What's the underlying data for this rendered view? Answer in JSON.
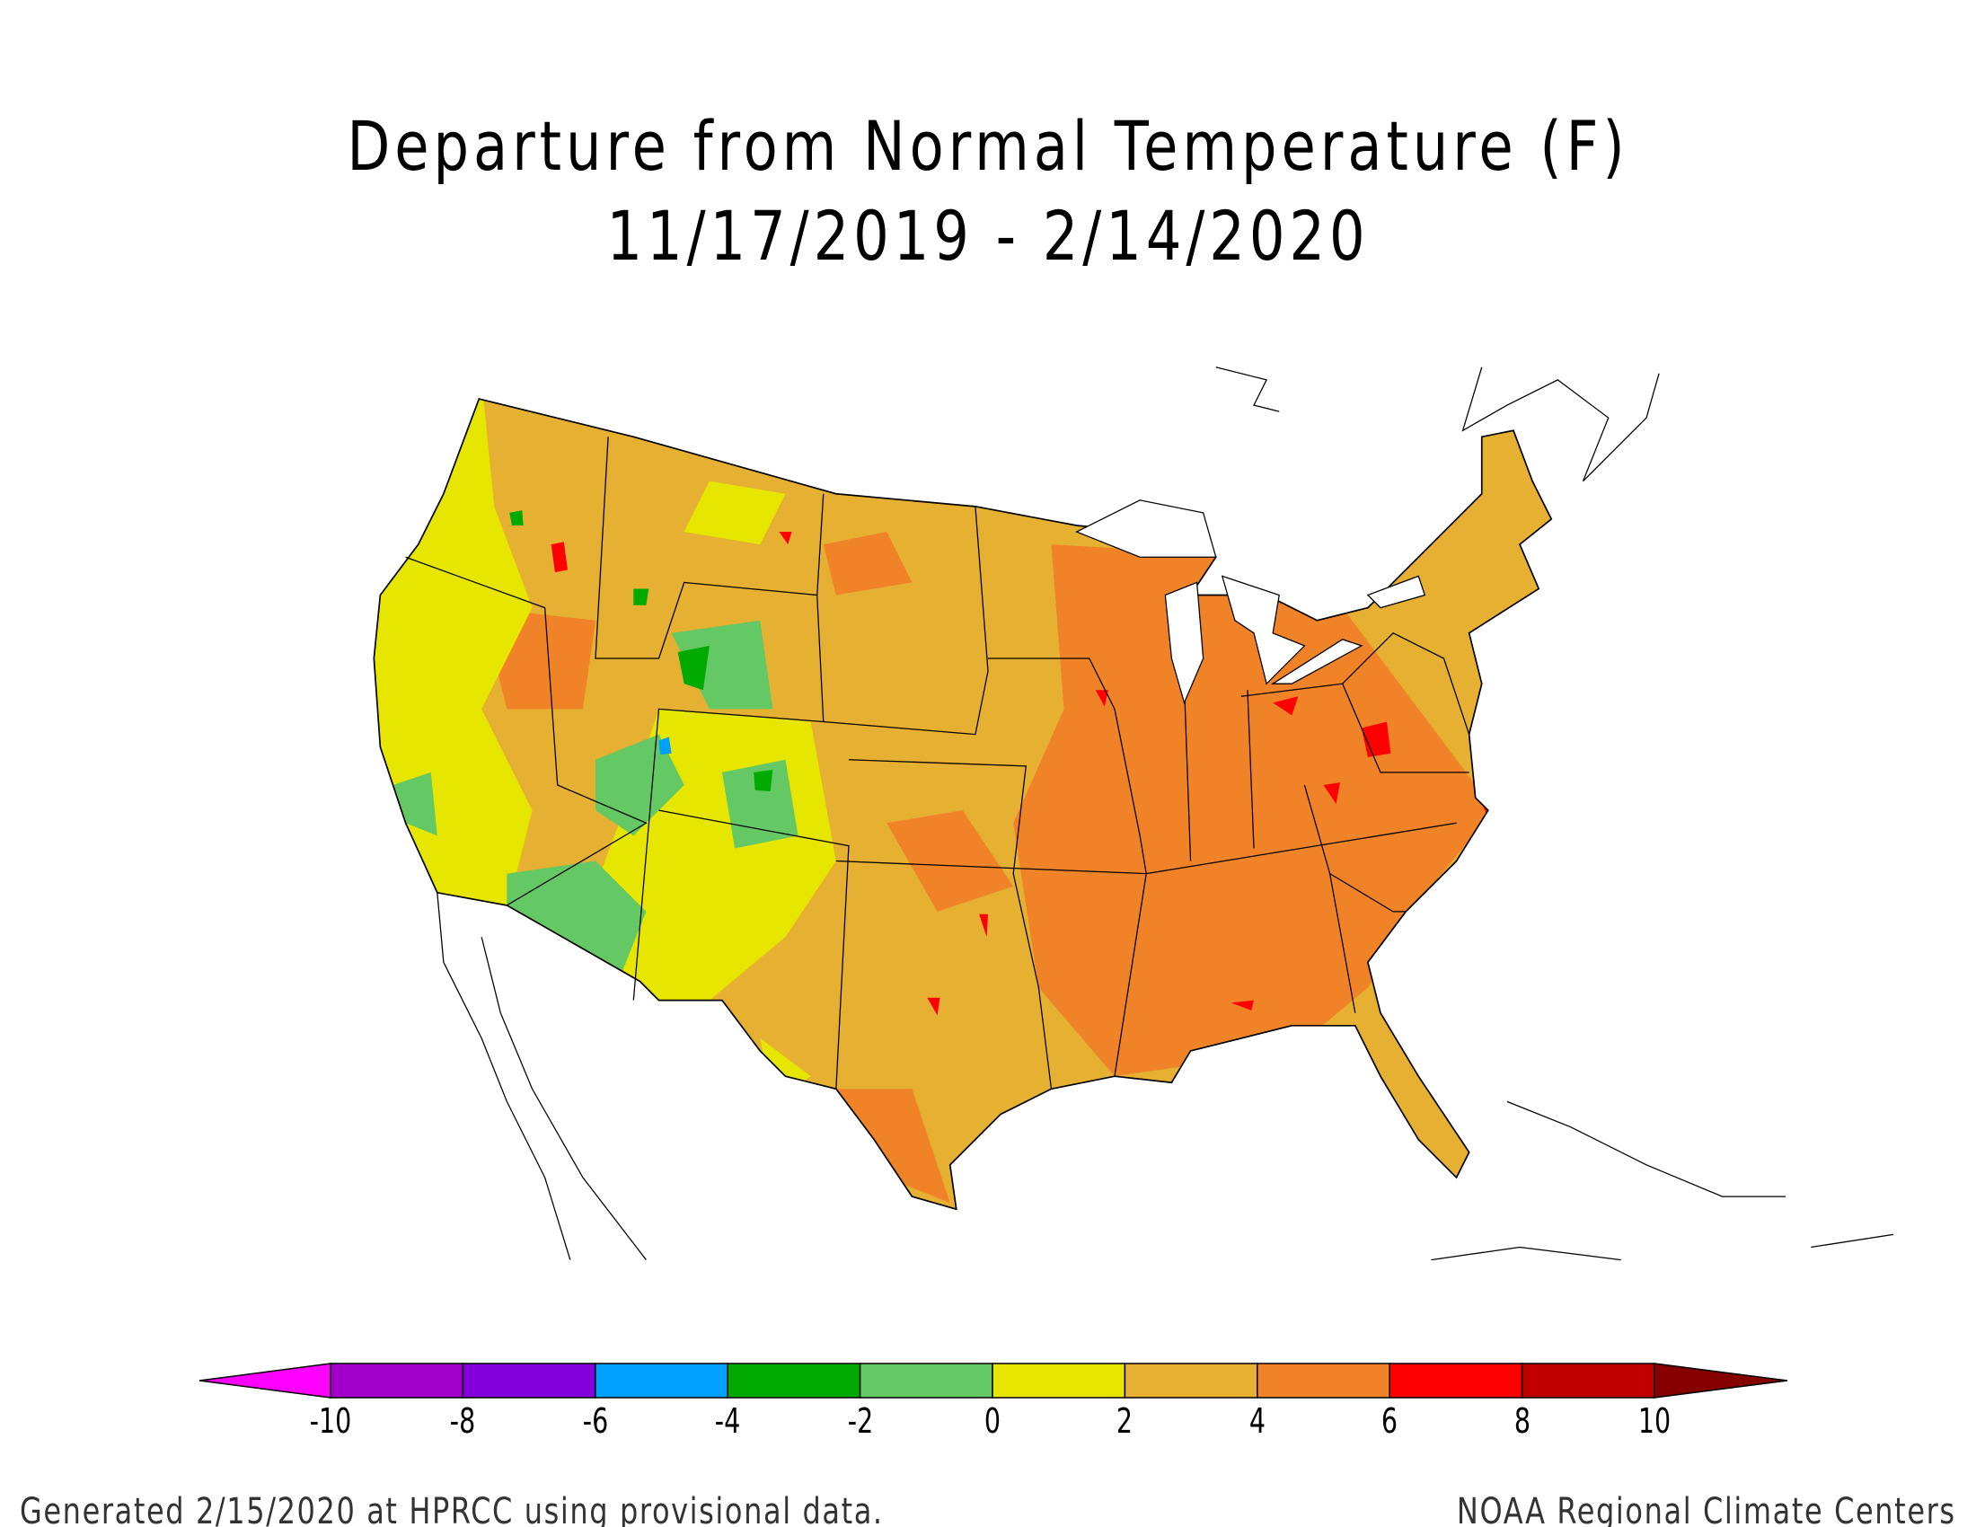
{
  "title": "Departure from Normal Temperature (F)",
  "subtitle": "11/17/2019 - 2/14/2020",
  "legend": {
    "labels": [
      "-10",
      "-8",
      "-6",
      "-4",
      "-2",
      "0",
      "2",
      "4",
      "6",
      "8",
      "10"
    ],
    "colors": [
      "#a000c8",
      "#8200dc",
      "#00a0ff",
      "#00aa00",
      "#64c864",
      "#e6e600",
      "#e6b032",
      "#f08228",
      "#ff0000",
      "#c00000"
    ],
    "below_min_color": "#ff00ff",
    "above_max_color": "#870000"
  },
  "footer": {
    "left": "Generated 2/15/2020 at HPRCC using provisional data.",
    "right": "NOAA Regional Climate Centers"
  }
}
